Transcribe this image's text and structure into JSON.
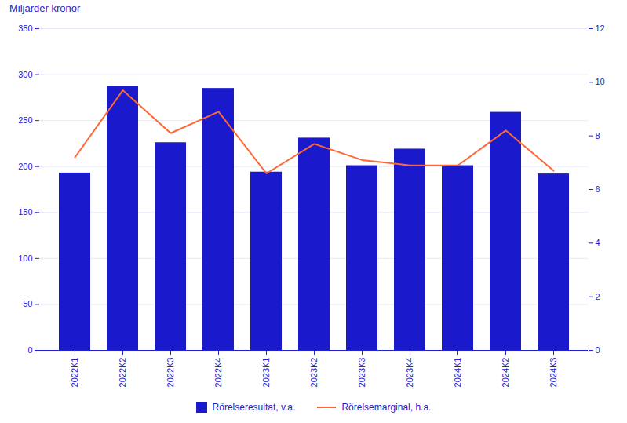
{
  "chart_data": {
    "type": "bar",
    "ylabel": "Miljarder kronor",
    "categories": [
      "2022K1",
      "2022K2",
      "2022K3",
      "2022K4",
      "2023K1",
      "2023K2",
      "2023K3",
      "2023K4",
      "2024K1",
      "2024K2",
      "2024K3"
    ],
    "series": [
      {
        "name": "Rörelseresultat, v.a.",
        "type": "bar",
        "color": "#1a1acc",
        "values": [
          193,
          287,
          226,
          285,
          194,
          231,
          201,
          219,
          201,
          259,
          192
        ]
      },
      {
        "name": "Rörelsemarginal, h.a.",
        "type": "line",
        "color": "#ff6633",
        "axis": "y2",
        "values": [
          7.2,
          9.7,
          8.1,
          8.9,
          6.6,
          7.7,
          7.1,
          6.9,
          6.9,
          8.2,
          6.7
        ]
      }
    ],
    "ylim": [
      0,
      350
    ],
    "yticks": [
      0,
      50,
      100,
      150,
      200,
      250,
      300,
      350
    ],
    "y2lim": [
      0,
      12
    ],
    "y2ticks": [
      0,
      2,
      4,
      6,
      8,
      10,
      12
    ],
    "grid": true,
    "legend": "bottom"
  }
}
